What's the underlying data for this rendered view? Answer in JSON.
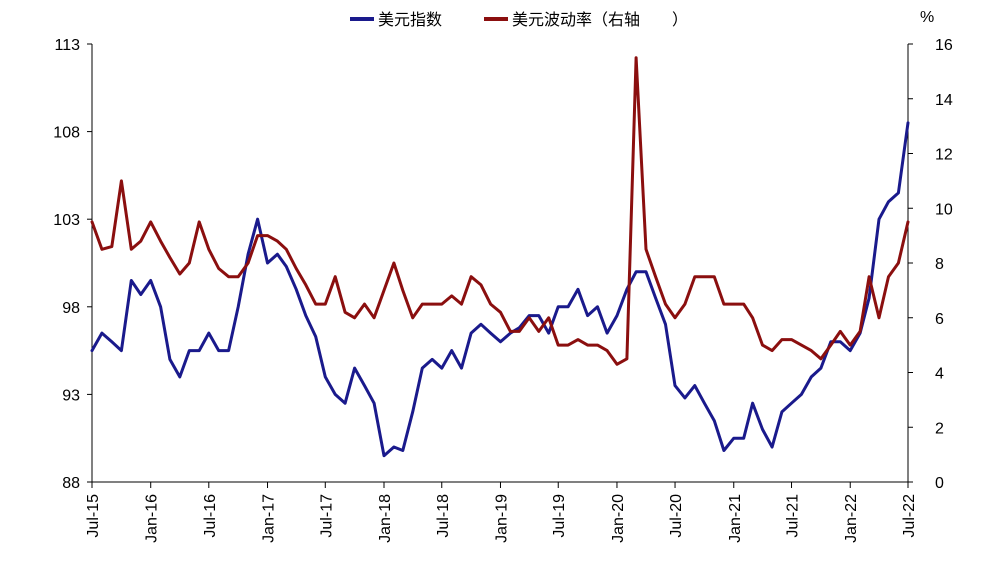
{
  "chart_data": {
    "type": "line",
    "title": "",
    "xlabel": "",
    "ylabel": "",
    "y2label": "%",
    "ylim": [
      88,
      113
    ],
    "y2lim": [
      0,
      16
    ],
    "yticks": [
      "88",
      "93",
      "98",
      "103",
      "108",
      "113"
    ],
    "y2ticks": [
      "0",
      "2",
      "4",
      "6",
      "8",
      "10",
      "12",
      "14",
      "16"
    ],
    "xticks": [
      "Jul-15",
      "Jan-16",
      "Jul-16",
      "Jan-17",
      "Jul-17",
      "Jan-18",
      "Jul-18",
      "Jan-19",
      "Jul-19",
      "Jan-20",
      "Jul-20",
      "Jan-21",
      "Jul-21",
      "Jan-22",
      "Jul-22"
    ],
    "legend_position": "top",
    "grid": false,
    "series": [
      {
        "name": "美元指数",
        "axis": "left",
        "color": "#1a1a8c",
        "x": [
          "2015-07",
          "2015-08",
          "2015-09",
          "2015-10",
          "2015-11",
          "2015-12",
          "2016-01",
          "2016-02",
          "2016-03",
          "2016-04",
          "2016-05",
          "2016-06",
          "2016-07",
          "2016-08",
          "2016-09",
          "2016-10",
          "2016-11",
          "2016-12",
          "2017-01",
          "2017-02",
          "2017-03",
          "2017-04",
          "2017-05",
          "2017-06",
          "2017-07",
          "2017-08",
          "2017-09",
          "2017-10",
          "2017-11",
          "2017-12",
          "2018-01",
          "2018-02",
          "2018-03",
          "2018-04",
          "2018-05",
          "2018-06",
          "2018-07",
          "2018-08",
          "2018-09",
          "2018-10",
          "2018-11",
          "2018-12",
          "2019-01",
          "2019-02",
          "2019-03",
          "2019-04",
          "2019-05",
          "2019-06",
          "2019-07",
          "2019-08",
          "2019-09",
          "2019-10",
          "2019-11",
          "2019-12",
          "2020-01",
          "2020-02",
          "2020-03",
          "2020-04",
          "2020-05",
          "2020-06",
          "2020-07",
          "2020-08",
          "2020-09",
          "2020-10",
          "2020-11",
          "2020-12",
          "2021-01",
          "2021-02",
          "2021-03",
          "2021-04",
          "2021-05",
          "2021-06",
          "2021-07",
          "2021-08",
          "2021-09",
          "2021-10",
          "2021-11",
          "2021-12",
          "2022-01",
          "2022-02",
          "2022-03",
          "2022-04",
          "2022-05",
          "2022-06",
          "2022-07"
        ],
        "values": [
          95.5,
          96.5,
          96.0,
          95.5,
          99.5,
          98.7,
          99.5,
          98.0,
          95.0,
          94.0,
          95.5,
          95.5,
          96.5,
          95.5,
          95.5,
          98.0,
          101.0,
          103.0,
          100.5,
          101.0,
          100.3,
          99.0,
          97.5,
          96.3,
          94.0,
          93.0,
          92.5,
          94.5,
          93.5,
          92.5,
          89.5,
          90.0,
          89.8,
          92.0,
          94.5,
          95.0,
          94.5,
          95.5,
          94.5,
          96.5,
          97.0,
          96.5,
          96.0,
          96.5,
          96.8,
          97.5,
          97.5,
          96.5,
          98.0,
          98.0,
          99.0,
          97.5,
          98.0,
          96.5,
          97.5,
          99.0,
          100.0,
          100.0,
          98.5,
          97.0,
          93.5,
          92.8,
          93.5,
          92.5,
          91.5,
          89.8,
          90.5,
          90.5,
          92.5,
          91.0,
          90.0,
          92.0,
          92.5,
          93.0,
          94.0,
          94.5,
          96.0,
          96.0,
          95.5,
          96.5,
          98.5,
          103.0,
          104.0,
          104.5,
          108.5
        ]
      },
      {
        "name": "美元波动率（右轴",
        "axis": "right",
        "color": "#8b0f0f",
        "x": [
          "2015-07",
          "2015-08",
          "2015-09",
          "2015-10",
          "2015-11",
          "2015-12",
          "2016-01",
          "2016-02",
          "2016-03",
          "2016-04",
          "2016-05",
          "2016-06",
          "2016-07",
          "2016-08",
          "2016-09",
          "2016-10",
          "2016-11",
          "2016-12",
          "2017-01",
          "2017-02",
          "2017-03",
          "2017-04",
          "2017-05",
          "2017-06",
          "2017-07",
          "2017-08",
          "2017-09",
          "2017-10",
          "2017-11",
          "2017-12",
          "2018-01",
          "2018-02",
          "2018-03",
          "2018-04",
          "2018-05",
          "2018-06",
          "2018-07",
          "2018-08",
          "2018-09",
          "2018-10",
          "2018-11",
          "2018-12",
          "2019-01",
          "2019-02",
          "2019-03",
          "2019-04",
          "2019-05",
          "2019-06",
          "2019-07",
          "2019-08",
          "2019-09",
          "2019-10",
          "2019-11",
          "2019-12",
          "2020-01",
          "2020-02",
          "2020-03",
          "2020-04",
          "2020-05",
          "2020-06",
          "2020-07",
          "2020-08",
          "2020-09",
          "2020-10",
          "2020-11",
          "2020-12",
          "2021-01",
          "2021-02",
          "2021-03",
          "2021-04",
          "2021-05",
          "2021-06",
          "2021-07",
          "2021-08",
          "2021-09",
          "2021-10",
          "2021-11",
          "2021-12",
          "2022-01",
          "2022-02",
          "2022-03",
          "2022-04",
          "2022-05",
          "2022-06",
          "2022-07"
        ],
        "values": [
          9.5,
          8.5,
          8.6,
          11.0,
          8.5,
          8.8,
          9.5,
          8.8,
          8.2,
          7.6,
          8.0,
          9.5,
          8.5,
          7.8,
          7.5,
          7.5,
          8.0,
          9.0,
          9.0,
          8.8,
          8.5,
          7.8,
          7.2,
          6.5,
          6.5,
          7.5,
          6.2,
          6.0,
          6.5,
          6.0,
          7.0,
          8.0,
          7.0,
          6.0,
          6.5,
          6.5,
          6.5,
          6.8,
          6.5,
          7.5,
          7.2,
          6.5,
          6.2,
          5.5,
          5.5,
          6.0,
          5.5,
          6.0,
          5.0,
          5.0,
          5.2,
          5.0,
          5.0,
          4.8,
          4.3,
          4.5,
          15.5,
          8.5,
          7.5,
          6.5,
          6.0,
          6.5,
          7.5,
          7.5,
          7.5,
          6.5,
          6.5,
          6.5,
          6.0,
          5.0,
          4.8,
          5.2,
          5.2,
          5.0,
          4.8,
          4.5,
          5.0,
          5.5,
          5.0,
          5.5,
          7.5,
          6.0,
          7.5,
          8.0,
          9.5
        ]
      }
    ]
  }
}
